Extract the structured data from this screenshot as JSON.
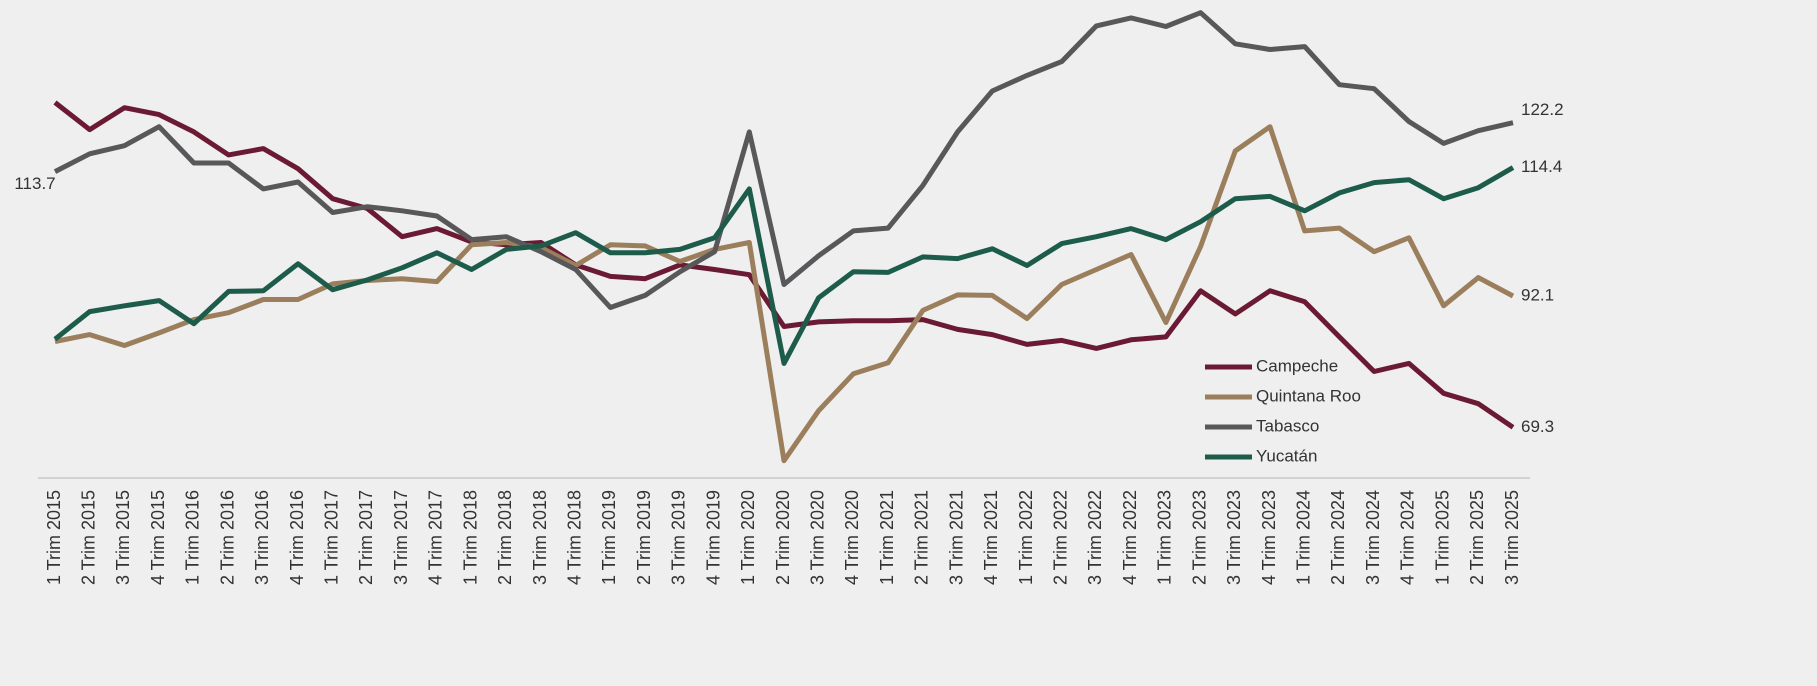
{
  "chart_data": {
    "type": "line",
    "categories": [
      "1 Trim 2015",
      "2 Trim 2015",
      "3 Trim 2015",
      "4 Trim 2015",
      "1 Trim 2016",
      "2 Trim 2016",
      "3 Trim 2016",
      "4 Trim 2016",
      "1 Trim 2017",
      "2 Trim 2017",
      "3 Trim 2017",
      "4 Trim 2017",
      "1 Trim 2018",
      "2 Trim 2018",
      "3 Trim 2018",
      "4 Trim 2018",
      "1 Trim 2019",
      "2 Trim 2019",
      "3 Trim 2019",
      "4 Trim 2019",
      "1 Trim 2020",
      "2 Trim 2020",
      "3 Trim 2020",
      "4 Trim 2020",
      "1 Trim 2021",
      "2 Trim 2021",
      "3 Trim 2021",
      "4 Trim 2021",
      "1 Trim 2022",
      "2 Trim 2022",
      "3 Trim 2022",
      "4 Trim 2022",
      "1 Trim 2023",
      "2 Trim 2023",
      "3 Trim 2023",
      "4 Trim 2023",
      "1 Trim 2024",
      "2 Trim 2024",
      "3 Trim 2024",
      "4 Trim 2024",
      "1 Trim 2025",
      "2 Trim 2025",
      "3 Trim 2025"
    ],
    "series": [
      {
        "name": "Campeche",
        "color": "#6b1a33",
        "values": [
          125.7,
          121.0,
          124.8,
          123.6,
          120.6,
          116.6,
          117.7,
          114.2,
          109.0,
          107.3,
          102.4,
          103.8,
          101.5,
          101.0,
          101.4,
          97.5,
          95.5,
          95.1,
          97.5,
          96.7,
          95.8,
          86.8,
          87.6,
          87.8,
          87.8,
          88.0,
          86.3,
          85.4,
          83.7,
          84.4,
          83.0,
          84.5,
          85.0,
          93.0,
          89.0,
          93.0,
          91.1,
          85.0,
          79.0,
          80.4,
          75.2,
          73.4,
          69.3
        ]
      },
      {
        "name": "Quintana Roo",
        "color": "#9b7f5d",
        "values": [
          84.2,
          85.4,
          83.5,
          85.7,
          88.0,
          89.2,
          91.5,
          91.5,
          94.2,
          94.8,
          95.1,
          94.6,
          101.0,
          101.4,
          100.5,
          97.4,
          101.0,
          100.8,
          98.1,
          100.2,
          101.4,
          63.5,
          72.2,
          78.6,
          80.5,
          89.6,
          92.3,
          92.2,
          88.2,
          94.1,
          96.7,
          99.3,
          87.5,
          100.7,
          117.3,
          121.5,
          103.4,
          103.9,
          99.8,
          102.2,
          90.4,
          95.3,
          92.1
        ]
      },
      {
        "name": "Tabasco",
        "color": "#58585a",
        "values": [
          113.7,
          116.8,
          118.2,
          121.5,
          115.2,
          115.2,
          110.7,
          111.9,
          106.6,
          107.6,
          106.9,
          106.0,
          101.9,
          102.4,
          99.8,
          96.7,
          90.1,
          92.2,
          96.3,
          99.8,
          120.6,
          94.1,
          99.1,
          103.4,
          103.9,
          111.3,
          120.6,
          127.7,
          130.4,
          132.8,
          139.0,
          140.4,
          138.9,
          141.3,
          135.9,
          134.9,
          135.4,
          128.8,
          128.1,
          122.4,
          118.6,
          120.8,
          122.2
        ]
      },
      {
        "name": "Yucatán",
        "color": "#1d5c4a",
        "values": [
          84.6,
          89.4,
          90.4,
          91.3,
          87.3,
          92.9,
          93.0,
          97.7,
          93.2,
          94.9,
          97.0,
          99.6,
          96.7,
          100.2,
          100.8,
          103.1,
          99.6,
          99.6,
          100.2,
          102.2,
          110.7,
          80.4,
          91.8,
          96.3,
          96.2,
          98.9,
          98.6,
          100.3,
          97.4,
          101.2,
          102.4,
          103.8,
          101.9,
          105.0,
          109.0,
          109.4,
          106.9,
          110.0,
          111.8,
          112.3,
          109.0,
          110.9,
          114.4
        ]
      }
    ],
    "ylim": [
      60.5,
      143.5
    ]
  }
}
